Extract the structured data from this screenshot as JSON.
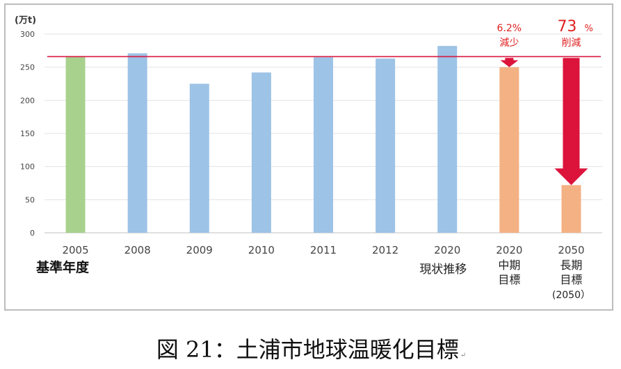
{
  "chart_data": {
    "type": "bar",
    "unit_label": "(万t)",
    "ylim": [
      0,
      300
    ],
    "yticks": [
      0,
      50,
      100,
      150,
      200,
      250,
      300
    ],
    "grid": true,
    "baseline_value": 266,
    "categories": [
      {
        "label": "2005",
        "sublabel": "基準年度",
        "value": 266,
        "color": "#a9d18e"
      },
      {
        "label": "2008",
        "sublabel": "",
        "value": 271,
        "color": "#9dc3e6"
      },
      {
        "label": "2009",
        "sublabel": "",
        "value": 225,
        "color": "#9dc3e6"
      },
      {
        "label": "2010",
        "sublabel": "",
        "value": 242,
        "color": "#9dc3e6"
      },
      {
        "label": "2011",
        "sublabel": "",
        "value": 265,
        "color": "#9dc3e6"
      },
      {
        "label": "2012",
        "sublabel": "",
        "value": 263,
        "color": "#9dc3e6"
      },
      {
        "label": "2020",
        "sublabel": "現状推移",
        "value": 282,
        "color": "#9dc3e6"
      },
      {
        "label": "2020",
        "sublabel": "中期\n目標",
        "value": 250,
        "color": "#f4b183"
      },
      {
        "label": "2050",
        "sublabel": "長期\n目標\n(2050）",
        "value": 72,
        "color": "#f4b183"
      }
    ],
    "annotations": [
      {
        "target": 7,
        "pct": "6.2%",
        "text": "減少"
      },
      {
        "target": 8,
        "pct": "73",
        "pct_suffix": "%",
        "text": "削減"
      }
    ]
  },
  "colors": {
    "baseline": "#d9173e",
    "arrow": "#dc143c",
    "annotation_text": "#e02020"
  },
  "caption": "図 21：土浦市地球温暖化目標"
}
